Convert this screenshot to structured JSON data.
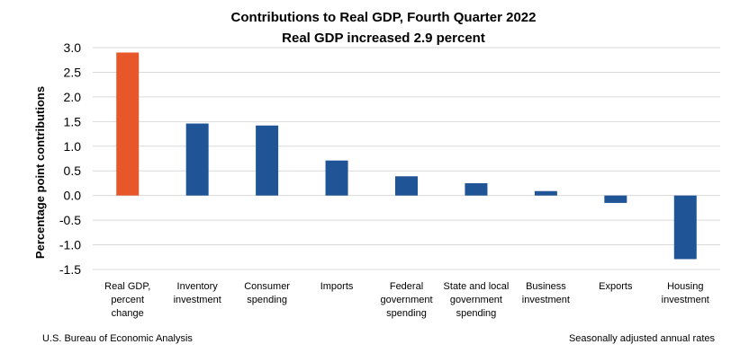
{
  "chart_data": {
    "type": "bar",
    "title": "Contributions to Real GDP, Fourth Quarter 2022",
    "subtitle": "Real GDP increased 2.9 percent",
    "ylabel": "Percentage point contributions",
    "xlabel": "",
    "ylim": [
      -1.5,
      3.0
    ],
    "ytick_step": 0.5,
    "grid": true,
    "categories": [
      [
        "Real GDP,",
        "percent",
        "change"
      ],
      [
        "Inventory",
        "investment"
      ],
      [
        "Consumer",
        "spending"
      ],
      [
        "Imports"
      ],
      [
        "Federal",
        "government",
        "spending"
      ],
      [
        "State and local",
        "government",
        "spending"
      ],
      [
        "Business",
        "investment"
      ],
      [
        "Exports"
      ],
      [
        "Housing",
        "investment"
      ]
    ],
    "values": [
      2.9,
      1.46,
      1.42,
      0.71,
      0.39,
      0.25,
      0.09,
      -0.15,
      -1.29
    ],
    "colors": {
      "highlight": "#E8572A",
      "bar": "#1F5597",
      "grid": "#D9D9D9"
    }
  },
  "footer": {
    "source": "U.S. Bureau of Economic Analysis",
    "note": "Seasonally adjusted annual rates"
  }
}
